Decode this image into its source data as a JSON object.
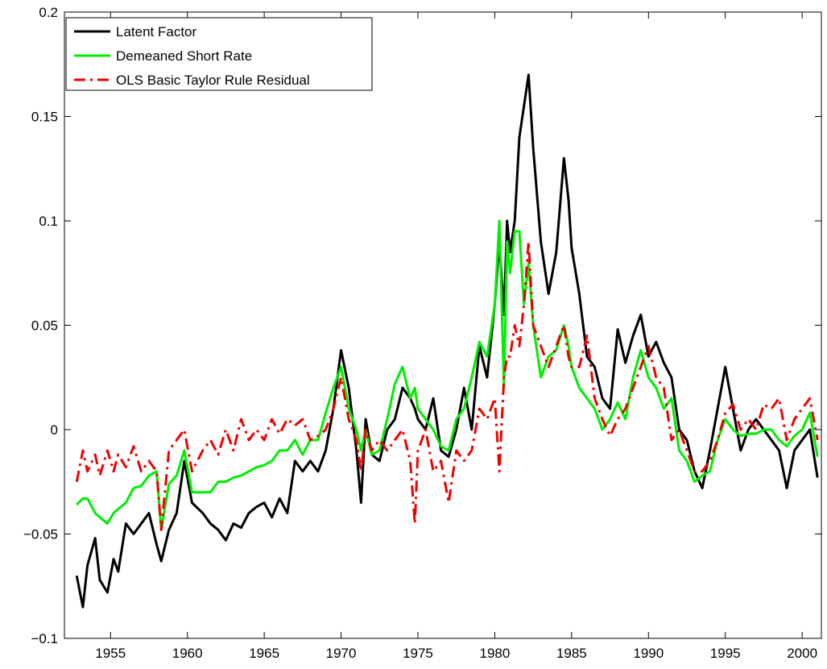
{
  "chart_data": {
    "type": "line",
    "x": [
      1952.8,
      1953.2,
      1953.5,
      1954,
      1954.3,
      1954.8,
      1955.2,
      1955.5,
      1956,
      1956.5,
      1957,
      1957.5,
      1958,
      1958.3,
      1958.8,
      1959.3,
      1959.8,
      1960.3,
      1961,
      1961.5,
      1962,
      1962.5,
      1963,
      1963.5,
      1964,
      1964.5,
      1965,
      1965.5,
      1966,
      1966.5,
      1967,
      1967.5,
      1968,
      1968.5,
      1969,
      1969.5,
      1970,
      1970.5,
      1971,
      1971.3,
      1971.6,
      1972,
      1972.5,
      1973,
      1973.5,
      1974,
      1974.5,
      1974.8,
      1975,
      1975.5,
      1976,
      1976.5,
      1977,
      1977.5,
      1978,
      1978.5,
      1979,
      1979.5,
      1980,
      1980.3,
      1980.6,
      1980.8,
      1981,
      1981.3,
      1981.6,
      1981.9,
      1982.2,
      1982.5,
      1983,
      1983.5,
      1984,
      1984.5,
      1984.8,
      1985,
      1985.5,
      1986,
      1986.5,
      1987,
      1987.5,
      1988,
      1988.5,
      1989,
      1989.5,
      1990,
      1990.5,
      1991,
      1991.5,
      1992,
      1992.5,
      1993,
      1993.5,
      1994,
      1994.5,
      1995,
      1995.5,
      1996,
      1996.5,
      1997,
      1997.5,
      1998,
      1998.5,
      1999,
      1999.5,
      2000,
      2000.5,
      2001
    ],
    "series": [
      {
        "name": "Latent Factor",
        "color": "#000000",
        "style": "solid",
        "values": [
          -0.07,
          -0.085,
          -0.065,
          -0.052,
          -0.072,
          -0.078,
          -0.062,
          -0.068,
          -0.045,
          -0.05,
          -0.045,
          -0.04,
          -0.055,
          -0.063,
          -0.048,
          -0.04,
          -0.015,
          -0.035,
          -0.04,
          -0.045,
          -0.048,
          -0.053,
          -0.045,
          -0.047,
          -0.04,
          -0.037,
          -0.035,
          -0.042,
          -0.033,
          -0.04,
          -0.015,
          -0.02,
          -0.015,
          -0.02,
          -0.01,
          0.01,
          0.038,
          0.02,
          -0.01,
          -0.035,
          0.005,
          -0.012,
          -0.015,
          0.0,
          0.005,
          0.02,
          0.015,
          0.01,
          0.005,
          0.0,
          0.015,
          -0.01,
          -0.013,
          0.0,
          0.02,
          0.0,
          0.04,
          0.025,
          0.06,
          0.09,
          0.055,
          0.1,
          0.085,
          0.1,
          0.14,
          0.155,
          0.17,
          0.135,
          0.09,
          0.065,
          0.085,
          0.13,
          0.11,
          0.087,
          0.065,
          0.035,
          0.03,
          0.015,
          0.01,
          0.048,
          0.032,
          0.045,
          0.055,
          0.035,
          0.042,
          0.032,
          0.025,
          0.0,
          -0.005,
          -0.02,
          -0.028,
          -0.01,
          0.01,
          0.03,
          0.01,
          -0.01,
          0.0,
          0.005,
          0.0,
          -0.005,
          -0.01,
          -0.028,
          -0.01,
          -0.005,
          0.0,
          -0.023
        ]
      },
      {
        "name": "Demeaned Short Rate",
        "color": "#00ee00",
        "style": "solid",
        "values": [
          -0.036,
          -0.033,
          -0.033,
          -0.04,
          -0.042,
          -0.045,
          -0.04,
          -0.038,
          -0.035,
          -0.028,
          -0.027,
          -0.022,
          -0.02,
          -0.048,
          -0.026,
          -0.022,
          -0.01,
          -0.03,
          -0.03,
          -0.03,
          -0.025,
          -0.025,
          -0.023,
          -0.022,
          -0.02,
          -0.018,
          -0.017,
          -0.015,
          -0.01,
          -0.01,
          -0.005,
          -0.012,
          -0.005,
          -0.005,
          0.008,
          0.02,
          0.03,
          0.01,
          0.0,
          -0.01,
          0.0,
          -0.012,
          -0.01,
          0.005,
          0.022,
          0.03,
          0.015,
          0.02,
          0.01,
          0.005,
          0.0,
          -0.008,
          -0.01,
          0.005,
          0.01,
          0.025,
          0.042,
          0.035,
          0.06,
          0.1,
          0.02,
          0.09,
          0.075,
          0.095,
          0.095,
          0.06,
          0.08,
          0.05,
          0.025,
          0.035,
          0.038,
          0.05,
          0.04,
          0.03,
          0.02,
          0.015,
          0.01,
          0.0,
          0.005,
          0.013,
          0.005,
          0.025,
          0.038,
          0.025,
          0.02,
          0.01,
          0.015,
          -0.01,
          -0.015,
          -0.025,
          -0.022,
          -0.02,
          -0.005,
          0.005,
          0.0,
          -0.003,
          -0.002,
          -0.002,
          0.0,
          0.0,
          -0.005,
          -0.008,
          -0.003,
          0.0,
          0.008,
          -0.013
        ]
      },
      {
        "name": "OLS Basic Taylor Rule Residual",
        "color": "#ee0000",
        "style": "dashdot",
        "values": [
          -0.025,
          -0.01,
          -0.02,
          -0.012,
          -0.022,
          -0.01,
          -0.02,
          -0.012,
          -0.018,
          -0.008,
          -0.02,
          -0.015,
          -0.02,
          -0.048,
          -0.01,
          -0.005,
          0.0,
          -0.02,
          -0.01,
          -0.005,
          -0.012,
          0.0,
          -0.01,
          0.005,
          -0.005,
          0.0,
          -0.005,
          0.005,
          -0.002,
          0.005,
          0.002,
          0.005,
          -0.005,
          -0.003,
          0.0,
          0.01,
          0.025,
          0.005,
          -0.005,
          -0.02,
          0.0,
          -0.01,
          -0.005,
          -0.01,
          -0.005,
          0.0,
          -0.015,
          -0.045,
          -0.01,
          0.0,
          -0.02,
          -0.015,
          -0.035,
          -0.01,
          -0.015,
          -0.01,
          0.01,
          0.005,
          0.015,
          -0.02,
          0.025,
          0.035,
          0.035,
          0.05,
          0.04,
          0.06,
          0.09,
          0.05,
          0.04,
          0.03,
          0.04,
          0.05,
          0.035,
          0.03,
          0.03,
          0.045,
          0.015,
          0.005,
          -0.003,
          0.005,
          0.01,
          0.02,
          0.03,
          0.04,
          0.025,
          0.02,
          -0.005,
          0.0,
          -0.01,
          -0.02,
          -0.02,
          -0.015,
          -0.005,
          0.008,
          0.012,
          0.0,
          0.005,
          0.0,
          0.012,
          0.01,
          0.015,
          -0.005,
          0.005,
          0.01,
          0.015,
          -0.005
        ]
      }
    ],
    "xlim": [
      1952,
      2001.25
    ],
    "xticks": [
      1955,
      1960,
      1965,
      1970,
      1975,
      1980,
      1985,
      1990,
      1995,
      2000
    ],
    "ylim": [
      -0.1,
      0.2
    ],
    "yticks": [
      {
        "value": -0.1,
        "label": "−0.1"
      },
      {
        "value": -0.05,
        "label": "−0.05"
      },
      0,
      0.05,
      0.1,
      0.15,
      0.2
    ],
    "legend": "upper left"
  }
}
